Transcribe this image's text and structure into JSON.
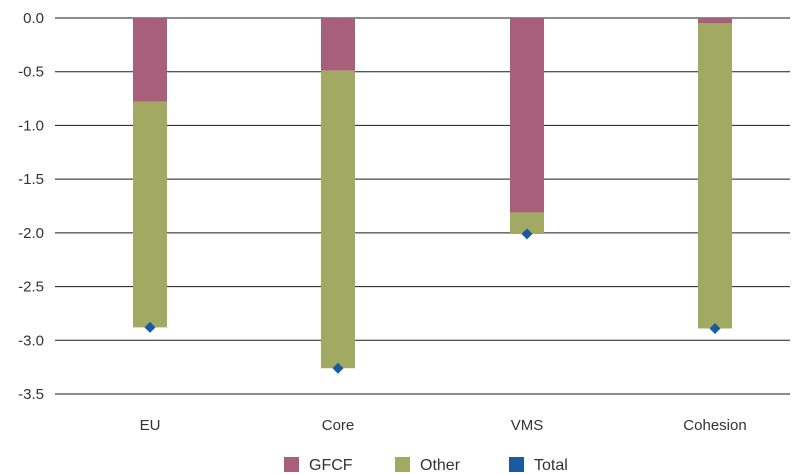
{
  "chart_data": {
    "type": "bar",
    "stacked": true,
    "categories": [
      "EU",
      "Core",
      "VMS",
      "Cohesion"
    ],
    "series": [
      {
        "name": "GFCF",
        "type": "bar",
        "color": "#a8607a",
        "values": [
          -0.78,
          -0.49,
          -1.81,
          -0.05
        ]
      },
      {
        "name": "Other",
        "type": "bar",
        "color": "#a1a963",
        "values": [
          -2.1,
          -2.77,
          -0.2,
          -2.84
        ]
      },
      {
        "name": "Total",
        "type": "marker",
        "color": "#1b5aa0",
        "values": [
          -2.88,
          -3.26,
          -2.01,
          -2.89
        ]
      }
    ],
    "ylim": [
      -3.5,
      0.0
    ],
    "yticks": [
      "0.0",
      "-0.5",
      "-1.0",
      "-1.5",
      "-2.0",
      "-2.5",
      "-3.0",
      "-3.5"
    ],
    "ytick_values": [
      0.0,
      -0.5,
      -1.0,
      -1.5,
      -2.0,
      -2.5,
      -3.0,
      -3.5
    ],
    "grid": true,
    "legend_position": "bottom"
  }
}
